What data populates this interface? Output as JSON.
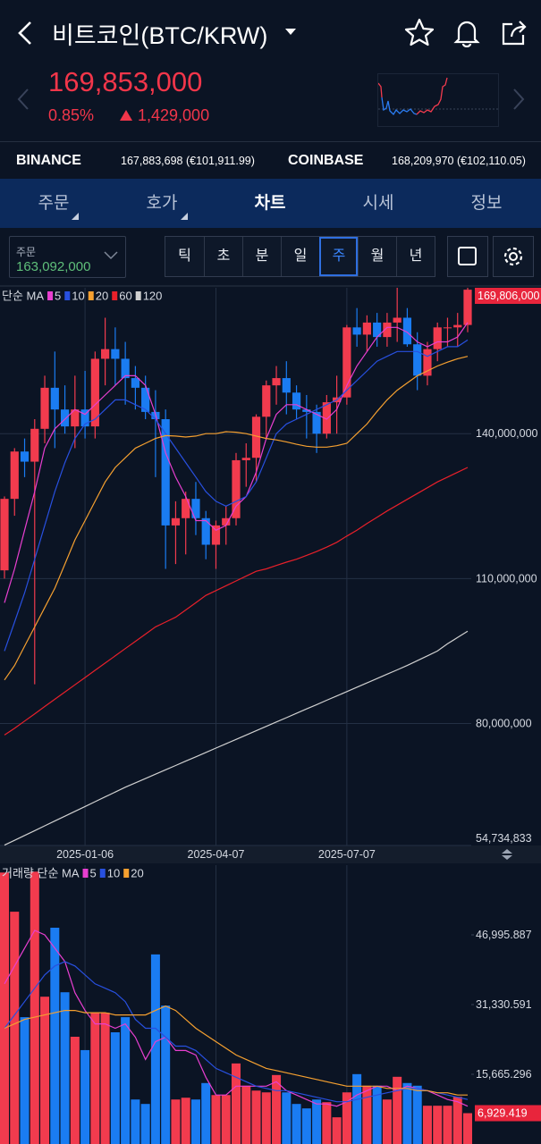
{
  "header": {
    "title": "비트코인(BTC/KRW)"
  },
  "price": {
    "current": "169,853,000",
    "change_rate": "0.85%",
    "change": "1,429,000"
  },
  "exchanges": [
    {
      "name": "BINANCE",
      "price": "167,883,698 (€101,911.99)"
    },
    {
      "name": "COINBASE",
      "price": "168,209,970 (€102,110.05)"
    }
  ],
  "tabs": [
    "주문",
    "호가",
    "차트",
    "시세",
    "정보"
  ],
  "order_select": {
    "label": "주문",
    "value": "163,092,000"
  },
  "periods": [
    "틱",
    "초",
    "분",
    "일",
    "주",
    "월",
    "년"
  ],
  "chart_data": [
    {
      "type": "candlestick",
      "legend_label": "단순 MA",
      "grid": true,
      "up_color": "#f23b4e",
      "down_color": "#1a7cf2",
      "categories": [
        null,
        null,
        null,
        null,
        null,
        null,
        null,
        null,
        "2025-01-06",
        null,
        null,
        null,
        null,
        null,
        null,
        null,
        null,
        null,
        null,
        null,
        null,
        "2025-04-07",
        null,
        null,
        null,
        null,
        null,
        null,
        null,
        null,
        null,
        null,
        null,
        null,
        "2025-07-07",
        null,
        null,
        null,
        null,
        null,
        null,
        null,
        null,
        null,
        null,
        null,
        null
      ],
      "open": [
        111700000,
        126500000,
        136300000,
        134200000,
        141000000,
        149500000,
        145000000,
        141500000,
        145000000,
        141500000,
        155500000,
        157500000,
        155500000,
        151500000,
        149500000,
        144500000,
        143000000,
        121000000,
        122500000,
        126500000,
        122500000,
        117000000,
        121000000,
        122500000,
        134500000,
        135000000,
        143500000,
        150000000,
        151500000,
        148500000,
        145000000,
        144500000,
        140000000,
        146500000,
        147500000,
        162000000,
        160500000,
        163000000,
        160000000,
        163000000,
        164000000,
        158500000,
        152000000,
        157500000,
        162000000,
        162000000,
        162500000
      ],
      "high": [
        127000000,
        137000000,
        139000000,
        143000000,
        152000000,
        157000000,
        150000000,
        152000000,
        153000000,
        157000000,
        164000000,
        162000000,
        159000000,
        154000000,
        152000000,
        149000000,
        145000000,
        126000000,
        128000000,
        130000000,
        124000000,
        122000000,
        125000000,
        136000000,
        138000000,
        144000000,
        151000000,
        154000000,
        155000000,
        150000000,
        148000000,
        146000000,
        148000000,
        152000000,
        162500000,
        166000000,
        164500000,
        165000000,
        165000000,
        170200000,
        166000000,
        161000000,
        159000000,
        163000000,
        164000000,
        165000000,
        170200000
      ],
      "low": [
        110000000,
        123000000,
        131000000,
        88100000,
        138000000,
        137000000,
        140000000,
        137000000,
        139000000,
        139000000,
        150000000,
        150000000,
        146000000,
        145000000,
        143000000,
        131000000,
        112000000,
        113000000,
        115000000,
        119000000,
        114000000,
        112000000,
        117000000,
        121000000,
        129000000,
        130000000,
        139000000,
        146000000,
        144000000,
        143000000,
        139000000,
        136000000,
        139000000,
        140000000,
        146000000,
        158000000,
        157000000,
        158000000,
        158000000,
        159000000,
        158000000,
        149000000,
        150000000,
        155000000,
        158000000,
        158000000,
        161000000
      ],
      "close": [
        126500000,
        136300000,
        134200000,
        141000000,
        149500000,
        145000000,
        141500000,
        145000000,
        141500000,
        155500000,
        157500000,
        155500000,
        151500000,
        149500000,
        144500000,
        143000000,
        121000000,
        122500000,
        126500000,
        122500000,
        117000000,
        121000000,
        122500000,
        134500000,
        135000000,
        143500000,
        150000000,
        151500000,
        148500000,
        145000000,
        144500000,
        140000000,
        146500000,
        147500000,
        162000000,
        160500000,
        163000000,
        160000000,
        163000000,
        164000000,
        158500000,
        152000000,
        157500000,
        162000000,
        162000000,
        162500000,
        169806000
      ],
      "series": [
        {
          "name": "5",
          "color": "#e83fd0",
          "values": [
            105000000,
            112000000,
            120000000,
            128000000,
            137000000,
            141000000,
            143000000,
            145000000,
            144000000,
            146000000,
            148000000,
            150000000,
            152000000,
            152000000,
            150000000,
            144000000,
            136000000,
            131000000,
            127000000,
            122000000,
            122000000,
            120000000,
            121000000,
            125000000,
            127000000,
            132000000,
            139000000,
            144000000,
            146000000,
            146000000,
            145000000,
            144000000,
            143000000,
            145000000,
            150000000,
            154000000,
            157000000,
            160000000,
            162000000,
            162000000,
            161000000,
            159000000,
            158000000,
            159000000,
            159000000,
            160000000,
            163000000
          ]
        },
        {
          "name": "10",
          "color": "#2850e0",
          "values": [
            95000000,
            101000000,
            107000000,
            114000000,
            121000000,
            128000000,
            134000000,
            139000000,
            142000000,
            143000000,
            145000000,
            147000000,
            147000000,
            146000000,
            145000000,
            143000000,
            140000000,
            137000000,
            134000000,
            131000000,
            128000000,
            126000000,
            125000000,
            126000000,
            127000000,
            130000000,
            135000000,
            140000000,
            142000000,
            143000000,
            144000000,
            145000000,
            146000000,
            147000000,
            149000000,
            151000000,
            153000000,
            155000000,
            156000000,
            157000000,
            157000000,
            157000000,
            156000000,
            157000000,
            158000000,
            158000000,
            159400000
          ]
        },
        {
          "name": "20",
          "color": "#f5a030",
          "values": [
            89000000,
            92000000,
            96000000,
            100000000,
            104000000,
            108000000,
            113000000,
            118000000,
            122000000,
            126000000,
            130000000,
            133000000,
            135000000,
            137000000,
            138000000,
            139000000,
            139600000,
            139500000,
            139300000,
            139500000,
            140000000,
            140000000,
            140400000,
            140300000,
            140000000,
            139500000,
            139000000,
            138700000,
            138300000,
            137800000,
            137400000,
            137200000,
            137200000,
            137500000,
            138000000,
            140000000,
            142000000,
            144600000,
            147000000,
            149000000,
            150500000,
            152000000,
            153000000,
            154000000,
            154800000,
            155500000,
            156000000
          ]
        },
        {
          "name": "60",
          "color": "#e8202a",
          "values": [
            77600000,
            79000000,
            80500000,
            82000000,
            83500000,
            85000000,
            86500000,
            88000000,
            89500000,
            91000000,
            92500000,
            94000000,
            95500000,
            97000000,
            98500000,
            100000000,
            101000000,
            102000000,
            103500000,
            105000000,
            106500000,
            107500000,
            108500000,
            109500000,
            110500000,
            111500000,
            112000000,
            112700000,
            113400000,
            114000000,
            114800000,
            115600000,
            116500000,
            117500000,
            118800000,
            120000000,
            121400000,
            122700000,
            124000000,
            125200000,
            126400000,
            127600000,
            128800000,
            130000000,
            131000000,
            132000000,
            133000000
          ]
        },
        {
          "name": "120",
          "color": "#d0d0d0",
          "values": [
            54800000,
            55800000,
            56800000,
            57800000,
            58800000,
            59800000,
            60800000,
            61800000,
            62800000,
            63800000,
            64800000,
            65800000,
            66800000,
            67700000,
            68600000,
            69500000,
            70400000,
            71300000,
            72200000,
            73100000,
            74000000,
            74900000,
            75800000,
            76700000,
            77600000,
            78500000,
            79400000,
            80300000,
            81200000,
            82100000,
            83000000,
            83900000,
            84800000,
            85700000,
            86600000,
            87500000,
            88400000,
            89300000,
            90200000,
            91100000,
            92000000,
            93000000,
            94000000,
            95000000,
            96500000,
            97800000,
            99100000
          ]
        }
      ],
      "ylim": [
        54734833,
        170200000
      ],
      "yticks": [
        {
          "value": 54734833,
          "label": "54,734,833"
        },
        {
          "value": 80000000,
          "label": "80,000,000"
        },
        {
          "value": 110000000,
          "label": "110,000,000"
        },
        {
          "value": 140000000,
          "label": "140,000,000"
        }
      ],
      "last_price": {
        "value": 169806000,
        "label": "169,806,000"
      }
    },
    {
      "type": "bar",
      "legend_label": "거래량 단순 MA",
      "grid": false,
      "values": [
        61000,
        52200,
        28500,
        61200,
        33100,
        48600,
        34100,
        24100,
        21100,
        29500,
        29500,
        25100,
        28500,
        10000,
        9000,
        42600,
        31100,
        10000,
        10400,
        10000,
        13700,
        11000,
        11000,
        18100,
        13100,
        12000,
        11600,
        15500,
        11600,
        9000,
        8000,
        10000,
        9400,
        6000,
        11600,
        15700,
        13100,
        13100,
        10000,
        15100,
        13700,
        13100,
        8600,
        8600,
        8600,
        10600,
        6929.419
      ],
      "series": [
        {
          "name": "5",
          "color": "#e83fd0",
          "values": [
            36000,
            40000,
            44000,
            48000,
            47000,
            44000,
            41000,
            34000,
            30000,
            27000,
            27000,
            26000,
            27000,
            24000,
            19000,
            23000,
            24000,
            21000,
            21000,
            20000,
            15000,
            11000,
            11000,
            13000,
            13000,
            13000,
            13000,
            14000,
            12000,
            11000,
            10000,
            9000,
            9000,
            8500,
            9500,
            11000,
            12000,
            13000,
            13000,
            12000,
            13000,
            12500,
            12000,
            11000,
            10000,
            9500,
            8500
          ]
        },
        {
          "name": "10",
          "color": "#2850e0",
          "values": [
            26000,
            29000,
            32000,
            35000,
            38000,
            40000,
            41000,
            40000,
            38000,
            36000,
            35000,
            34000,
            32000,
            28000,
            26000,
            26000,
            24000,
            22000,
            22000,
            21000,
            19000,
            17000,
            16000,
            15000,
            14000,
            13000,
            12500,
            12000,
            12000,
            11500,
            11000,
            10500,
            10000,
            9500,
            9500,
            10000,
            10500,
            11000,
            11500,
            12000,
            12500,
            12500,
            12000,
            11500,
            11000,
            10500,
            10000
          ]
        },
        {
          "name": "20",
          "color": "#f5a030",
          "values": [
            26000,
            27000,
            28000,
            28500,
            29000,
            29500,
            30000,
            30000,
            29500,
            29500,
            29500,
            29000,
            29000,
            29000,
            29000,
            30000,
            31000,
            30000,
            28000,
            26000,
            24500,
            23000,
            21500,
            20000,
            19000,
            18000,
            17000,
            16500,
            16000,
            15500,
            15000,
            14500,
            14000,
            13500,
            13000,
            13000,
            13000,
            13000,
            12500,
            12500,
            12500,
            12000,
            12000,
            11500,
            11500,
            11000,
            11000
          ]
        }
      ],
      "ylim": [
        0,
        62661.182
      ],
      "yticks": [
        {
          "value": 15665.296,
          "label": "15,665.296"
        },
        {
          "value": 31330.591,
          "label": "31,330.591"
        },
        {
          "value": 46995.887,
          "label": "46,995.887"
        }
      ],
      "last_value": {
        "value": 6929.419,
        "label": "6,929.419"
      }
    }
  ]
}
